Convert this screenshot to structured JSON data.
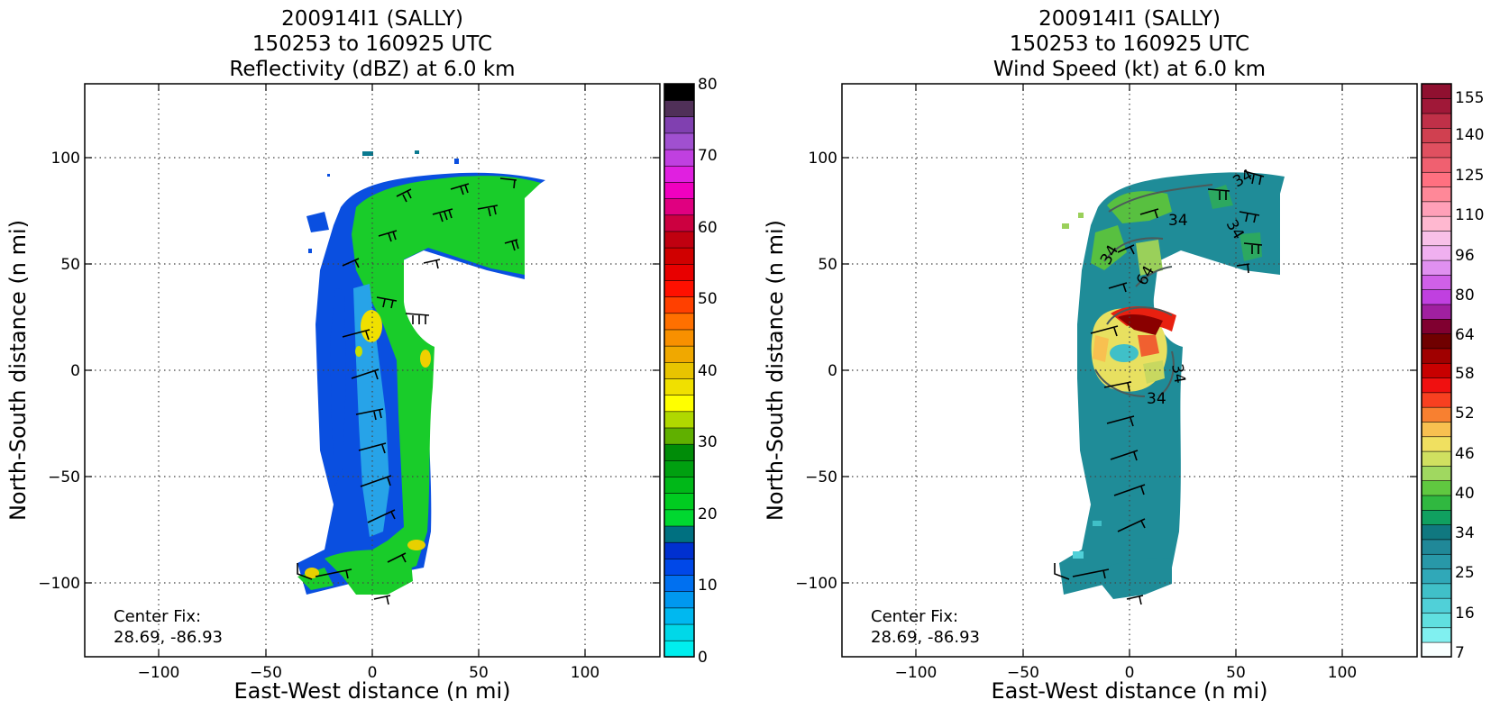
{
  "chart_data": [
    {
      "type": "heatmap",
      "title": [
        "200914I1 (SALLY)",
        "150253 to 160925 UTC",
        "Reflectivity (dBZ) at 6.0 km"
      ],
      "xlabel": "East-West distance (n mi)",
      "ylabel": "North-South distance (n mi)",
      "xlim": [
        -135,
        135
      ],
      "ylim": [
        -135,
        135
      ],
      "xticks": [
        "−100",
        "−50",
        "0",
        "50",
        "100"
      ],
      "yticks": [
        "100",
        "50",
        "0",
        "−50",
        "−100"
      ],
      "grid": true,
      "colorbar": {
        "label_values": [
          "80",
          "70",
          "60",
          "50",
          "40",
          "30",
          "20",
          "10",
          "0"
        ],
        "range": [
          0,
          80
        ],
        "colors": [
          "#00eeee",
          "#00d8e8",
          "#00b8f0",
          "#0098f0",
          "#0070f0",
          "#0048e8",
          "#0030d0",
          "#007080",
          "#00d830",
          "#00cc20",
          "#00b818",
          "#00a010",
          "#008c08",
          "#60b000",
          "#b0d800",
          "#ffff00",
          "#f0e000",
          "#e8c400",
          "#f0a800",
          "#f89000",
          "#ff7000",
          "#ff4000",
          "#ff1000",
          "#e80000",
          "#d00000",
          "#c00010",
          "#cc0040",
          "#e00080",
          "#f000c0",
          "#e020e0",
          "#c040e0",
          "#a050d0",
          "#8040b0",
          "#503058",
          "#000000"
        ]
      },
      "annotation": [
        "Center Fix:",
        "28.69, -86.93"
      ]
    },
    {
      "type": "heatmap",
      "title": [
        "200914I1 (SALLY)",
        "150253 to 160925 UTC",
        "Wind Speed (kt) at 6.0 km"
      ],
      "xlabel": "East-West distance (n mi)",
      "ylabel": "North-South distance (n mi)",
      "xlim": [
        -135,
        135
      ],
      "ylim": [
        -135,
        135
      ],
      "xticks": [
        "−100",
        "−50",
        "0",
        "50",
        "100"
      ],
      "yticks": [
        "100",
        "50",
        "0",
        "−50",
        "−100"
      ],
      "grid": true,
      "contour_labels": [
        "34",
        "34",
        "34",
        "34",
        "64",
        "34",
        "34"
      ],
      "colorbar": {
        "label_values": [
          "155",
          "140",
          "125",
          "110",
          "96",
          "80",
          "64",
          "58",
          "52",
          "46",
          "40",
          "34",
          "25",
          "16",
          "7"
        ],
        "colors": [
          "#f8ffff",
          "#80f0f0",
          "#60e0e0",
          "#50d0d8",
          "#40c0c8",
          "#30a8b8",
          "#2898a8",
          "#208898",
          "#107880",
          "#10a060",
          "#30b840",
          "#60c840",
          "#a0d860",
          "#d0e060",
          "#f0e060",
          "#f8c050",
          "#f88030",
          "#f84020",
          "#f01010",
          "#c80000",
          "#a00000",
          "#700000",
          "#800030",
          "#a020a0",
          "#c040e0",
          "#d060e8",
          "#e090f0",
          "#f0b0f0",
          "#f8c0e8",
          "#ffb8d0",
          "#ffa0b8",
          "#ff8898",
          "#ff7080",
          "#f06070",
          "#e05060",
          "#d04050",
          "#c03048",
          "#a01838",
          "#901030"
        ]
      },
      "annotation": [
        "Center Fix:",
        "28.69, -86.93"
      ]
    }
  ]
}
